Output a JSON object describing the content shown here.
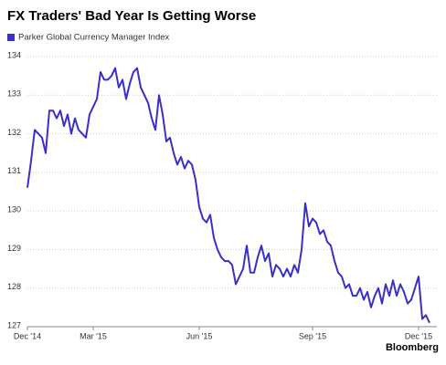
{
  "chart_data": {
    "type": "line",
    "title": "FX Traders' Bad Year Is Getting Worse",
    "source": "Bloomberg",
    "categories": [
      "Dec '14",
      null,
      null,
      null,
      null,
      null,
      null,
      null,
      null,
      null,
      null,
      null,
      null,
      null,
      null,
      null,
      null,
      null,
      "Mar '15",
      null,
      null,
      null,
      null,
      null,
      null,
      null,
      null,
      null,
      null,
      null,
      null,
      null,
      null,
      null,
      null,
      null,
      null,
      null,
      null,
      null,
      null,
      null,
      null,
      null,
      null,
      null,
      null,
      "Jun '15",
      null,
      null,
      null,
      null,
      null,
      null,
      null,
      null,
      null,
      null,
      null,
      null,
      null,
      null,
      null,
      null,
      null,
      null,
      null,
      null,
      null,
      null,
      null,
      null,
      null,
      null,
      null,
      null,
      null,
      null,
      "Sep '15",
      null,
      null,
      null,
      null,
      null,
      null,
      null,
      null,
      null,
      null,
      null,
      null,
      null,
      null,
      null,
      null,
      null,
      null,
      null,
      null,
      null,
      null,
      null,
      null,
      null,
      null,
      null,
      null,
      "Dec '15",
      null,
      null,
      null
    ],
    "series": [
      {
        "name": "Parker Global Currency Manager Index",
        "color": "#3a2fc8",
        "values": [
          130.6,
          131.3,
          132.1,
          132.0,
          131.9,
          131.5,
          132.6,
          132.6,
          132.4,
          132.6,
          132.2,
          132.5,
          132.0,
          132.4,
          132.1,
          132.0,
          131.9,
          132.5,
          132.7,
          132.9,
          133.6,
          133.4,
          133.4,
          133.5,
          133.7,
          133.2,
          133.4,
          132.9,
          133.3,
          133.6,
          133.7,
          133.2,
          133.0,
          132.8,
          132.4,
          132.1,
          133.0,
          132.5,
          131.8,
          131.9,
          131.5,
          131.2,
          131.4,
          131.1,
          131.3,
          131.2,
          130.8,
          130.1,
          129.8,
          129.7,
          129.9,
          129.3,
          129.0,
          128.8,
          128.7,
          128.7,
          128.6,
          128.1,
          128.3,
          128.5,
          129.1,
          128.4,
          128.4,
          128.8,
          129.1,
          128.7,
          128.9,
          128.3,
          128.6,
          128.5,
          128.3,
          128.5,
          128.3,
          128.6,
          128.4,
          129.0,
          130.2,
          129.6,
          129.8,
          129.7,
          129.4,
          129.5,
          129.2,
          129.1,
          128.7,
          128.4,
          128.3,
          128.0,
          128.1,
          127.8,
          127.8,
          128.0,
          127.7,
          127.9,
          127.5,
          127.8,
          128.0,
          127.6,
          128.1,
          127.8,
          128.2,
          127.8,
          128.1,
          127.9,
          127.6,
          127.7,
          128.0,
          128.3,
          127.2,
          127.3,
          127.1
        ]
      }
    ],
    "ylim": [
      127,
      134
    ],
    "yticks": [
      127,
      128,
      129,
      130,
      131,
      132,
      133,
      134
    ],
    "grid": true
  }
}
